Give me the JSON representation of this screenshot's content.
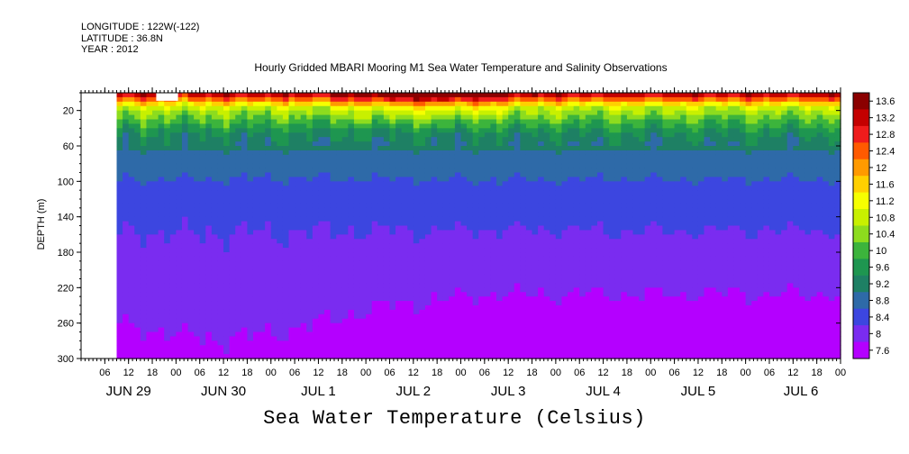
{
  "header": {
    "longitude": "LONGITUDE : 122W(-122)",
    "latitude": "LATITUDE : 36.8N",
    "year": "YEAR : 2012"
  },
  "chart_data": {
    "type": "heatmap",
    "title": "Hourly Gridded MBARI Mooring M1 Sea Water Temperature and Salinity Observations",
    "xlabel": "Sea Water Temperature (Celsius)",
    "ylabel": "DEPTH (m)",
    "y_ticks": [
      20,
      60,
      100,
      140,
      180,
      220,
      260,
      300
    ],
    "ylim": [
      300,
      0
    ],
    "y_reversed": true,
    "x_hour_ticks": [
      "06",
      "12",
      "18",
      "00",
      "06",
      "12",
      "18",
      "00",
      "06",
      "12",
      "18",
      "00",
      "06",
      "12",
      "18",
      "00",
      "06",
      "12",
      "18",
      "00",
      "06",
      "12",
      "18",
      "00",
      "06",
      "12",
      "18",
      "00",
      "06",
      "12",
      "18",
      "00"
    ],
    "x_hour_range": [
      0,
      192
    ],
    "x_hour_tick_start": 6,
    "x_day_labels": [
      {
        "label": "JUN 29",
        "hour": 12
      },
      {
        "label": "JUN 30",
        "hour": 36
      },
      {
        "label": "JUL  1",
        "hour": 60
      },
      {
        "label": "JUL  2",
        "hour": 84
      },
      {
        "label": "JUL  3",
        "hour": 108
      },
      {
        "label": "JUL  4",
        "hour": 132
      },
      {
        "label": "JUL  5",
        "hour": 156
      },
      {
        "label": "JUL  6",
        "hour": 182
      }
    ],
    "data_start_hour": 9,
    "colorbar": {
      "levels": [
        "13.6",
        "13.2",
        "12.8",
        "12.4",
        "12",
        "11.6",
        "11.2",
        "10.8",
        "10.4",
        "10",
        "9.6",
        "9.2",
        "8.8",
        "8.4",
        "8",
        "7.6"
      ],
      "colors": [
        "#8b0000",
        "#c40000",
        "#ef1c1c",
        "#ff5a00",
        "#ff9a00",
        "#ffd000",
        "#f6ff00",
        "#c8f000",
        "#8ddc1e",
        "#3cb43c",
        "#1e9650",
        "#1e8064",
        "#2e6aa8",
        "#3c46e0",
        "#7a2cf0",
        "#b400ff"
      ]
    },
    "isotherm_depths": [
      {
        "temp": 13.0,
        "depth": 5
      },
      {
        "temp": 12.0,
        "depth": 10
      },
      {
        "temp": 11.0,
        "depth": 17
      },
      {
        "temp": 10.4,
        "depth": 28
      },
      {
        "temp": 9.6,
        "depth": 45
      },
      {
        "temp": 9.0,
        "depth": 75
      },
      {
        "temp": 8.6,
        "depth": 120
      },
      {
        "temp": 8.2,
        "depth": 190
      },
      {
        "temp": 7.8,
        "depth": 265
      }
    ]
  },
  "colors": {
    "background": "#ffffff",
    "frame": "#000000"
  }
}
